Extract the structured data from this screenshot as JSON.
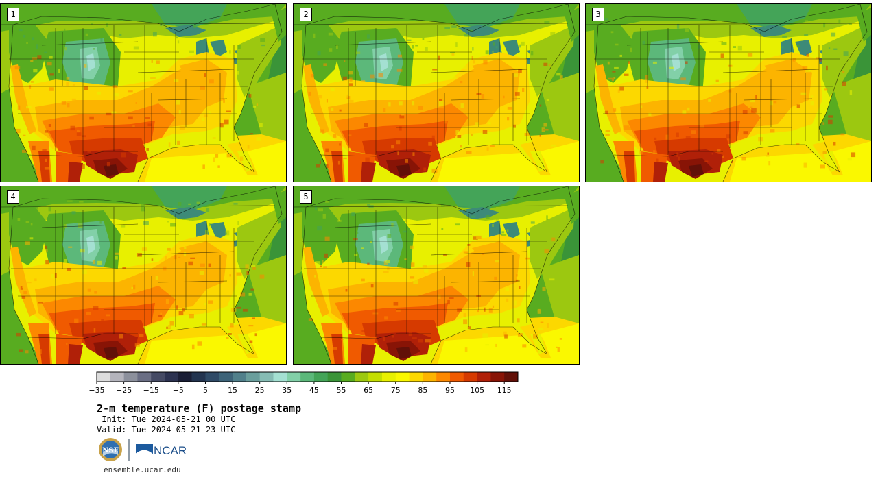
{
  "product": {
    "title": "2-m temperature (F) postage stamp",
    "init_line": " Init: Tue 2024-05-21 00 UTC",
    "valid_line": "Valid: Tue 2024-05-21 23 UTC"
  },
  "panels": [
    {
      "label": "1",
      "intensity": 1.0
    },
    {
      "label": "2",
      "intensity": 0.95
    },
    {
      "label": "3",
      "intensity": 1.05
    },
    {
      "label": "4",
      "intensity": 0.98
    },
    {
      "label": "5",
      "intensity": 0.97
    }
  ],
  "colorbar": {
    "units": "F",
    "tick_labels": [
      "−35",
      "−25",
      "−15",
      "−5",
      "5",
      "15",
      "25",
      "35",
      "45",
      "55",
      "65",
      "75",
      "85",
      "95",
      "105",
      "115"
    ],
    "colors": [
      "#dcdcdc",
      "#b4b4bc",
      "#8c909c",
      "#6a6e84",
      "#454a64",
      "#2c3250",
      "#1a1e35",
      "#23344f",
      "#2f4a66",
      "#3d6378",
      "#51808b",
      "#6a9e9c",
      "#86bcb4",
      "#a4e0d2",
      "#82d0a8",
      "#5cb87a",
      "#44a458",
      "#3a9438",
      "#58ac20",
      "#9cc810",
      "#c4de00",
      "#e8f000",
      "#faf800",
      "#fcd800",
      "#fcb400",
      "#fc8800",
      "#f05a00",
      "#d63a00",
      "#b02008",
      "#881406",
      "#621008"
    ]
  },
  "logos": {
    "nsf_text": "NSF",
    "ncar_text": "NCAR"
  },
  "site": "ensemble.ucar.edu"
}
